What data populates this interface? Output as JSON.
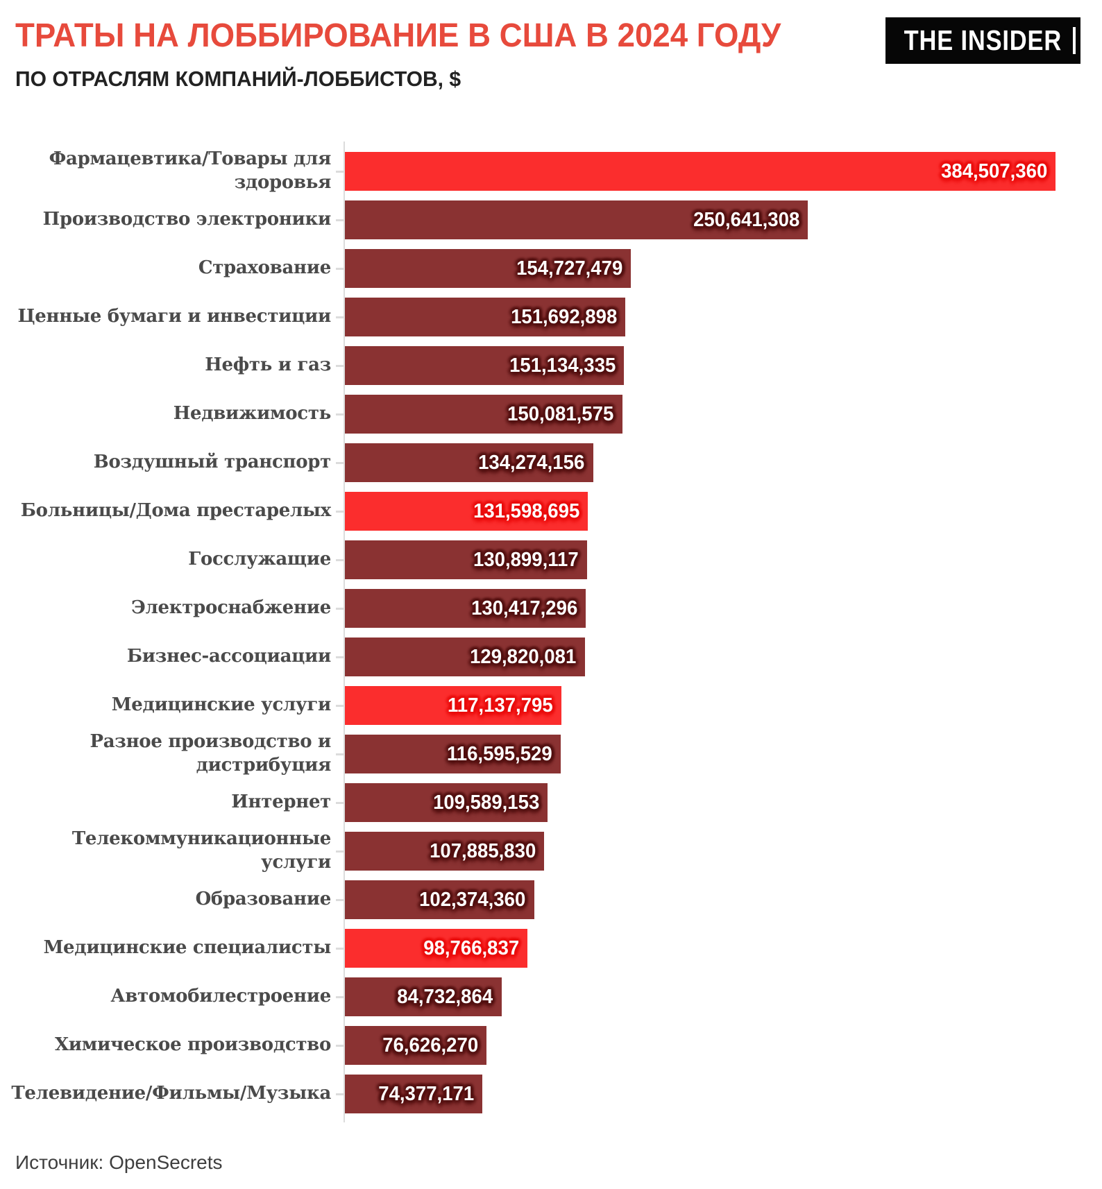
{
  "header": {
    "title": "ТРАТЫ НА ЛОББИРОВАНИЕ В США В 2024 ГОДУ",
    "subtitle": "ПО ОТРАСЛЯМ КОМПАНИЙ-ЛОББИСТОВ, $",
    "logo_text": "THE INSIDER"
  },
  "footer": {
    "source": "Источник: OpenSecrets"
  },
  "colors": {
    "title_red": "#e74a3c",
    "subtitle_dark": "#222222",
    "bar_maroon": "#8a3232",
    "bar_red": "#fb2d2d",
    "halo_maroon": "#521111",
    "halo_red": "#e80d0d",
    "label_gray": "#4a4a4a",
    "axis_gray": "#dcdcdc",
    "logo_bg": "#060606",
    "value_text": "#ffffff"
  },
  "chart_data": {
    "type": "bar",
    "orientation": "horizontal",
    "title": "ТРАТЫ НА ЛОББИРОВАНИЕ В США В 2024 ГОДУ",
    "subtitle": "ПО ОТРАСЛЯМ КОМПАНИЙ-ЛОББИСТОВ, $",
    "unit": "$",
    "grid": "off",
    "legend": "none",
    "xlim": [
      0,
      384507360
    ],
    "categories": [
      "Фармацевтика/Товары для\nздоровья",
      "Производство электроники",
      "Страхование",
      "Ценные бумаги и инвестиции",
      "Нефть и газ",
      "Недвижимость",
      "Воздушный транспорт",
      "Больницы/Дома престарелых",
      "Госслужащие",
      "Электроснабжение",
      "Бизнес-ассоциации",
      "Медицинские услуги",
      "Разное производство и дистрибуция",
      "Интернет",
      "Телекоммуникационные услуги",
      "Образование",
      "Медицинские специалисты",
      "Автомобилестроение",
      "Химическое производство",
      "Телевидение/Фильмы/Музыка"
    ],
    "values": [
      384507360,
      250641308,
      154727479,
      151692898,
      151134335,
      150081575,
      134274156,
      131598695,
      130899117,
      130417296,
      129820081,
      117137795,
      116595529,
      109589153,
      107885830,
      102374360,
      98766837,
      84732864,
      76626270,
      74377171
    ],
    "value_labels": [
      "384,507,360",
      "250,641,308",
      "154,727,479",
      "151,692,898",
      "151,134,335",
      "150,081,575",
      "134,274,156",
      "131,598,695",
      "130,899,117",
      "130,417,296",
      "129,820,081",
      "117,137,795",
      "116,595,529",
      "109,589,153",
      "107,885,830",
      "102,374,360",
      "98,766,837",
      "84,732,864",
      "76,626,270",
      "74,377,171"
    ],
    "highlight_indexes": [
      0,
      7,
      11,
      16
    ],
    "source": "Источник: OpenSecrets"
  }
}
